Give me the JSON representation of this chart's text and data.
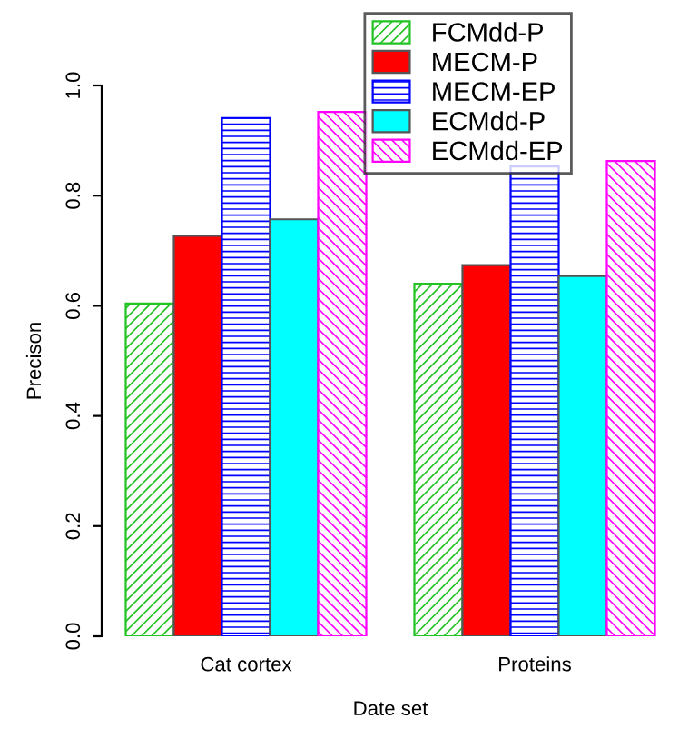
{
  "chart_data": {
    "type": "bar",
    "xlabel": "Date set",
    "ylabel": "Precison",
    "categories": [
      "Cat cortex",
      "Proteins"
    ],
    "series": [
      {
        "name": "FCMdd-P",
        "color": "#22c322",
        "values": [
          0.604,
          0.64
        ]
      },
      {
        "name": "MECM-P",
        "color": "#ff0000",
        "values": [
          0.727,
          0.674
        ]
      },
      {
        "name": "MECM-EP",
        "color": "#0000ff",
        "values": [
          0.941,
          0.854
        ]
      },
      {
        "name": "ECMdd-P",
        "color": "#00ffff",
        "values": [
          0.757,
          0.654
        ]
      },
      {
        "name": "ECMdd-EP",
        "color": "#ff00ff",
        "values": [
          0.952,
          0.863
        ]
      }
    ],
    "ylim": [
      0,
      1.0
    ],
    "yticks": [
      {
        "value": 0,
        "label": "0.0"
      },
      {
        "value": 0.2,
        "label": "0.2"
      },
      {
        "value": 0.4,
        "label": "0.4"
      },
      {
        "value": 0.6,
        "label": "0.6"
      },
      {
        "value": 0.8,
        "label": "0.8"
      },
      {
        "value": 1.0,
        "label": "1.0"
      }
    ],
    "legend": "top right",
    "grid": false
  }
}
